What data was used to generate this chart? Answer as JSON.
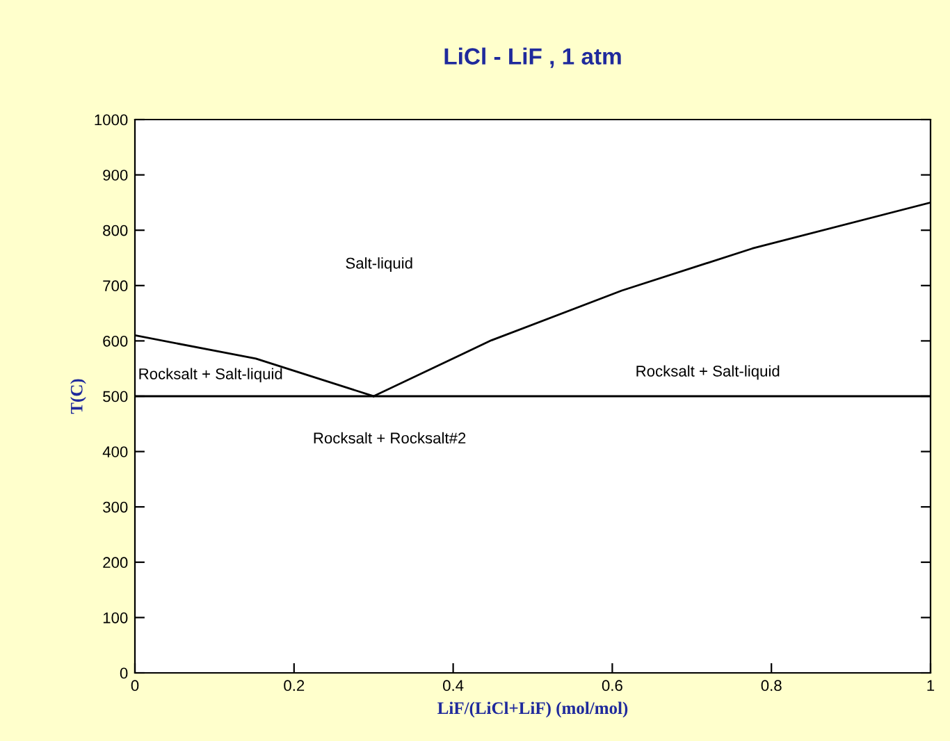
{
  "chart_data": {
    "type": "line",
    "title": "LiCl - LiF , 1 atm",
    "xlabel": "LiF/(LiCl+LiF) (mol/mol)",
    "ylabel": "T(C)",
    "series": [
      {
        "color": "#000000",
        "x": [
          0,
          0.152,
          0.3
        ],
        "values": [
          610,
          568,
          500
        ]
      },
      {
        "color": "#000000",
        "x": [
          0.3,
          0.448,
          0.612,
          0.776,
          1
        ],
        "values": [
          500,
          601,
          691,
          767,
          850
        ]
      },
      {
        "color": "#000000",
        "x": [
          0,
          1
        ],
        "values": [
          500,
          500
        ]
      }
    ],
    "annotations": [
      "Salt-liquid",
      "Rocksalt + Salt-liquid",
      "Rocksalt + Salt-liquid",
      "Rocksalt + Rocksalt#2"
    ],
    "xlim": [
      0,
      1
    ],
    "ylim": [
      0,
      1000
    ],
    "xticks": [
      0,
      0.2,
      0.4,
      0.6,
      0.8,
      1
    ],
    "yticks": [
      0,
      100,
      200,
      300,
      400,
      500,
      600,
      700,
      800,
      900,
      1000
    ],
    "grid": false,
    "legend": false
  }
}
